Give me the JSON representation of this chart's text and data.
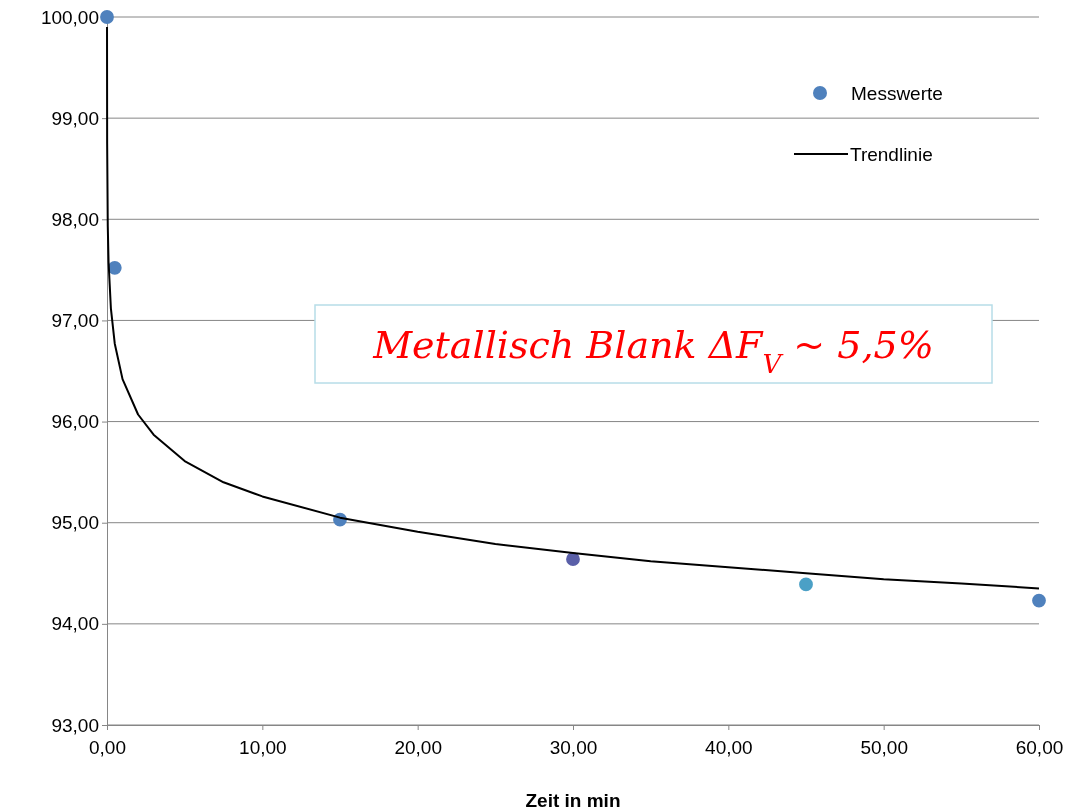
{
  "chart_data": {
    "type": "scatter",
    "xlabel": "Zeit in min",
    "xlim": [
      0,
      60
    ],
    "ylim": [
      93,
      100
    ],
    "xticks": [
      {
        "value": 0,
        "label": "0,00"
      },
      {
        "value": 10,
        "label": "10,00"
      },
      {
        "value": 20,
        "label": "20,00"
      },
      {
        "value": 30,
        "label": "30,00"
      },
      {
        "value": 40,
        "label": "40,00"
      },
      {
        "value": 50,
        "label": "50,00"
      },
      {
        "value": 60,
        "label": "60,00"
      }
    ],
    "yticks": [
      {
        "value": 93,
        "label": "93,00"
      },
      {
        "value": 94,
        "label": "94,00"
      },
      {
        "value": 95,
        "label": "95,00"
      },
      {
        "value": 96,
        "label": "96,00"
      },
      {
        "value": 97,
        "label": "97,00"
      },
      {
        "value": 98,
        "label": "98,00"
      },
      {
        "value": 99,
        "label": "99,00"
      },
      {
        "value": 100,
        "label": "100,00"
      }
    ],
    "grid": "y",
    "legend": "top right",
    "series": [
      {
        "name": "Messwerte",
        "marker": "circle",
        "color": "#4f81bd",
        "colors": [
          "#4f81bd",
          "#4f81bd",
          "#4f81bd",
          "#5a5fa8",
          "#4ba0c6",
          "#4f81bd"
        ],
        "x": [
          0,
          0.5,
          15,
          30,
          45,
          60
        ],
        "values": [
          100,
          97.52,
          95.03,
          94.64,
          94.39,
          94.23
        ]
      },
      {
        "name": "Trendlinie",
        "type": "line",
        "color": "#000000",
        "line_style": "solid",
        "x": [
          0.001,
          0.01,
          0.05,
          0.1,
          0.25,
          0.5,
          1,
          2,
          3,
          5,
          7.5,
          10,
          15,
          20,
          25,
          30,
          35,
          40,
          45,
          50,
          55,
          60
        ],
        "values": [
          99.9,
          98.75,
          97.93,
          97.58,
          97.12,
          96.77,
          96.42,
          96.07,
          95.87,
          95.61,
          95.4,
          95.26,
          95.05,
          94.91,
          94.79,
          94.7,
          94.62,
          94.56,
          94.5,
          94.44,
          94.4,
          94.35
        ]
      }
    ],
    "annotations": [
      "Metallisch Blank ΔF$_{V}$ ~ 5,5%"
    ]
  }
}
